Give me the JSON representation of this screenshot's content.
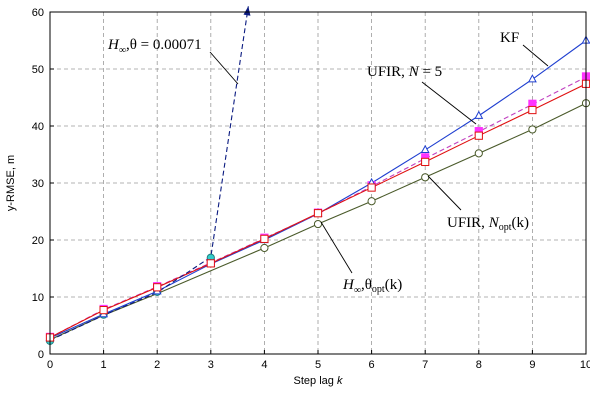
{
  "chart_data": {
    "type": "line",
    "xlabel": "Step lag k",
    "ylabel": "y-RMSE, m",
    "xlim": [
      0,
      10
    ],
    "ylim": [
      0,
      60
    ],
    "xticks": [
      0,
      1,
      2,
      3,
      4,
      5,
      6,
      7,
      8,
      9,
      10
    ],
    "yticks": [
      0,
      10,
      20,
      30,
      40,
      50,
      60
    ],
    "grid": true,
    "x": [
      0,
      1,
      2,
      3,
      4,
      5,
      6,
      7,
      8,
      9,
      10
    ],
    "series": [
      {
        "key": "kf",
        "color": "#1f3fd0",
        "marker": "triangle",
        "dash": false,
        "values": [
          2.8,
          7.0,
          11.0,
          15.8,
          20.0,
          24.6,
          30.0,
          35.8,
          41.8,
          48.2,
          55.0
        ]
      },
      {
        "key": "ufir_n5",
        "color": "#c040c0",
        "marker": "none",
        "dash": true,
        "values": [
          2.9,
          7.8,
          11.8,
          16.0,
          20.3,
          24.6,
          29.4,
          34.3,
          39.0,
          43.8,
          48.6
        ]
      },
      {
        "key": "ufir_nopt",
        "color": "#e01010",
        "marker": "square",
        "dash": false,
        "values": [
          2.9,
          7.7,
          11.7,
          15.9,
          20.2,
          24.7,
          29.2,
          33.7,
          38.3,
          42.8,
          47.4
        ]
      },
      {
        "key": "hinf_opt",
        "color": "#4a5a2a",
        "marker": "circle",
        "dash": false,
        "values": [
          2.5,
          6.8,
          10.6,
          14.6,
          18.6,
          22.8,
          26.8,
          31.0,
          35.2,
          39.4,
          44.0
        ]
      },
      {
        "key": "hinf_fixed",
        "color": "#0a1a80",
        "marker": "none",
        "dash": true,
        "arrow": true,
        "x": [
          0,
          1,
          2,
          3,
          3.7
        ],
        "values": [
          2.4,
          6.8,
          10.8,
          17.0,
          61.0
        ]
      }
    ],
    "annotations": {
      "hinf_fixed": {
        "main": "H",
        "sub": "∞",
        "tail": ",θ = 0.00071"
      },
      "kf": {
        "text": "KF"
      },
      "ufir_n5": {
        "pre": "UFIR, ",
        "italic": "N",
        "tail": " = 5"
      },
      "ufir_nopt": {
        "pre": "UFIR, ",
        "italic": "N",
        "sub": "opt",
        "tail": "(k)"
      },
      "hinf_opt": {
        "main": "H",
        "sub": "∞",
        "theta": ",θ",
        "sub2": "opt",
        "tail": "(k)"
      }
    },
    "extra_markers": {
      "cyan_filled": {
        "color": "#33cccc",
        "x": [
          0,
          1,
          2,
          3
        ],
        "values": [
          2.3,
          6.9,
          10.9,
          16.9
        ]
      },
      "magenta_filled": {
        "color": "#ff33ff",
        "x": [
          0,
          1,
          2,
          3,
          4,
          5,
          6,
          7,
          8,
          9,
          10
        ],
        "values": [
          3.0,
          7.9,
          11.9,
          16.1,
          20.4,
          24.8,
          29.6,
          34.5,
          39.1,
          43.9,
          48.7
        ]
      }
    }
  }
}
